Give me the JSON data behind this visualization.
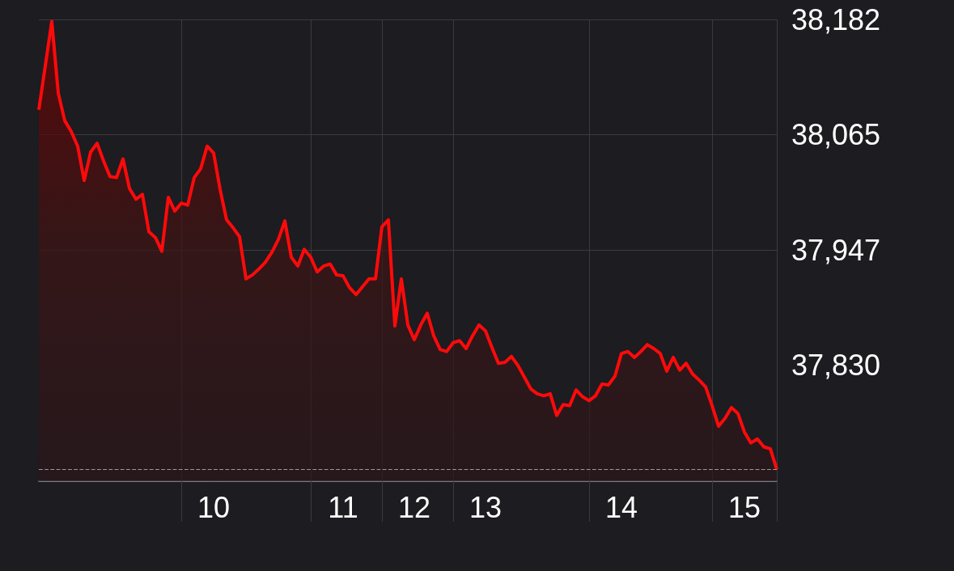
{
  "chart_data": {
    "type": "area",
    "categories": [
      null,
      null,
      null,
      null,
      null,
      null,
      null,
      null,
      null,
      null,
      null,
      null,
      null,
      null,
      null,
      null,
      null,
      null,
      null,
      null,
      null,
      null,
      null,
      null,
      null,
      null,
      null,
      "10",
      null,
      null,
      null,
      null,
      null,
      null,
      null,
      null,
      null,
      null,
      null,
      null,
      null,
      null,
      null,
      null,
      null,
      null,
      null,
      "11",
      null,
      null,
      null,
      null,
      null,
      null,
      null,
      null,
      null,
      null,
      "12",
      null,
      null,
      null,
      null,
      null,
      null,
      null,
      null,
      null,
      null,
      "13",
      null,
      null,
      null,
      null,
      null,
      null,
      null,
      null,
      null,
      null,
      null,
      null,
      null,
      null,
      null,
      null,
      null,
      null,
      null,
      null,
      "14",
      null,
      null,
      null,
      null,
      null,
      null,
      null,
      null,
      null,
      null,
      null,
      null,
      null,
      null,
      null,
      null,
      null,
      null,
      "15",
      null,
      null,
      null,
      null,
      null
    ],
    "series": [
      {
        "color": "#ff0a0a",
        "values": [
          38090,
          38135,
          38180,
          38107,
          38079,
          38068,
          38053,
          38018,
          38047,
          38056,
          38038,
          38022,
          38021,
          38040,
          38010,
          37999,
          38004,
          37966,
          37960,
          37946,
          38001,
          37987,
          37995,
          37993,
          38021,
          38030,
          38053,
          38046,
          38009,
          37978,
          37970,
          37961,
          37918,
          37922,
          37928,
          37935,
          37945,
          37958,
          37977,
          37940,
          37931,
          37948,
          37940,
          37925,
          37931,
          37933,
          37922,
          37921,
          37909,
          37902,
          37910,
          37918,
          37918,
          37971,
          37978,
          37870,
          37918,
          37871,
          37856,
          37871,
          37883,
          37860,
          37846,
          37844,
          37853,
          37855,
          37847,
          37860,
          37871,
          37865,
          37848,
          37832,
          37833,
          37839,
          37830,
          37818,
          37806,
          37801,
          37799,
          37801,
          37779,
          37790,
          37789,
          37805,
          37798,
          37794,
          37799,
          37811,
          37810,
          37819,
          37842,
          37844,
          37838,
          37844,
          37851,
          37847,
          37842,
          37824,
          37838,
          37825,
          37832,
          37821,
          37815,
          37808,
          37789,
          37768,
          37776,
          37787,
          37781,
          37762,
          37751,
          37755,
          37747,
          37745,
          37724
        ]
      }
    ],
    "ylim": [
      37712,
      38182
    ],
    "yticks": [
      {
        "value": 37830,
        "label": "37,830"
      },
      {
        "value": 37947,
        "label": "37,947"
      },
      {
        "value": 38065,
        "label": "38,065"
      },
      {
        "value": 38182,
        "label": "38,182"
      }
    ],
    "grid": true,
    "ref_lines": [
      {
        "axis": "y",
        "value": 37724,
        "line_style": "dashed",
        "color": "#9a9a9e"
      }
    ]
  }
}
